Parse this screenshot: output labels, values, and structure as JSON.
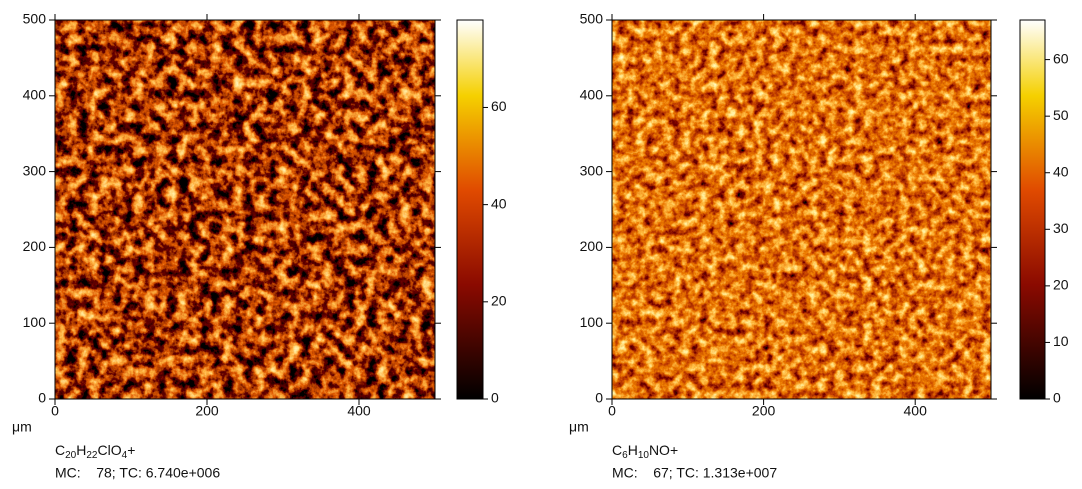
{
  "chart_data": [
    {
      "type": "heatmap",
      "unit_label": "μm",
      "formula": [
        {
          "text": "C",
          "sub": false
        },
        {
          "text": "20",
          "sub": true
        },
        {
          "text": "H",
          "sub": false
        },
        {
          "text": "22",
          "sub": true
        },
        {
          "text": "ClO",
          "sub": false
        },
        {
          "text": "4",
          "sub": true
        },
        {
          "text": "+",
          "sub": false
        }
      ],
      "stats": "MC:    78; TC: 6.740e+006",
      "xlim": [
        0,
        500
      ],
      "xticks": [
        0,
        200,
        400
      ],
      "ylim": [
        0,
        500
      ],
      "yticks": [
        0,
        100,
        200,
        300,
        400,
        500
      ],
      "clim": [
        0,
        78
      ],
      "cticks": [
        0,
        20,
        40,
        60
      ]
    },
    {
      "type": "heatmap",
      "unit_label": "μm",
      "formula": [
        {
          "text": "C",
          "sub": false
        },
        {
          "text": "6",
          "sub": true
        },
        {
          "text": "H",
          "sub": false
        },
        {
          "text": "10",
          "sub": true
        },
        {
          "text": "NO+",
          "sub": false
        }
      ],
      "stats": "MC:    67; TC: 1.313e+007",
      "xlim": [
        0,
        500
      ],
      "xticks": [
        0,
        200,
        400
      ],
      "ylim": [
        0,
        500
      ],
      "yticks": [
        0,
        100,
        200,
        300,
        400,
        500
      ],
      "clim": [
        0,
        67
      ],
      "cticks": [
        0,
        10,
        20,
        30,
        40,
        50,
        60
      ]
    }
  ]
}
